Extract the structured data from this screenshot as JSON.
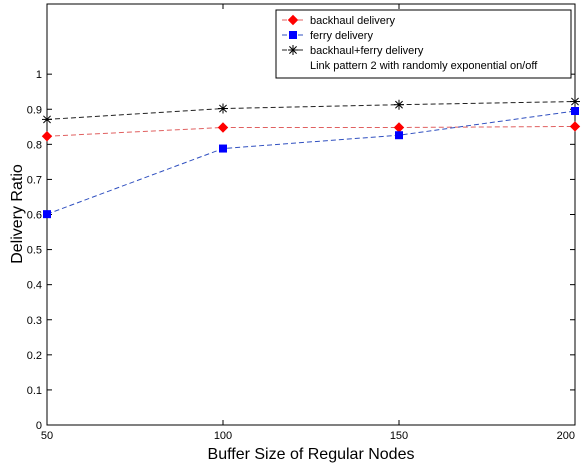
{
  "chart_data": {
    "type": "line",
    "title": "",
    "xlabel": "Buffer Size of Regular Nodes",
    "ylabel": "Delivery Ratio",
    "x": [
      50,
      100,
      150,
      200
    ],
    "xlim": [
      50,
      200
    ],
    "ylim": [
      0,
      1.2
    ],
    "xticks": [
      50,
      100,
      150,
      200
    ],
    "yticks": [
      0,
      0.1,
      0.2,
      0.3,
      0.4,
      0.5,
      0.6,
      0.7,
      0.8,
      0.9,
      1
    ],
    "ytick_labels": [
      "0",
      "0.1",
      "0.2",
      "0.3",
      "0.4",
      "0.5",
      "0.6",
      "0.7",
      "0.8",
      "0.9",
      "1"
    ],
    "grid": false,
    "legend_position": "top-right",
    "legend_note": "Link pattern 2 with randomly exponential on/off",
    "series": [
      {
        "name": "backhaul delivery",
        "values": [
          0.823,
          0.848,
          0.848,
          0.851
        ],
        "color": "#ff0000",
        "line_color": "#e06060",
        "marker": "diamond"
      },
      {
        "name": "ferry delivery",
        "values": [
          0.601,
          0.788,
          0.826,
          0.895
        ],
        "color": "#0000ff",
        "line_color": "#3050c0",
        "marker": "square"
      },
      {
        "name": "backhaul+ferry delivery",
        "values": [
          0.871,
          0.902,
          0.913,
          0.922
        ],
        "color": "#000000",
        "line_color": "#202020",
        "marker": "asterisk"
      }
    ]
  }
}
